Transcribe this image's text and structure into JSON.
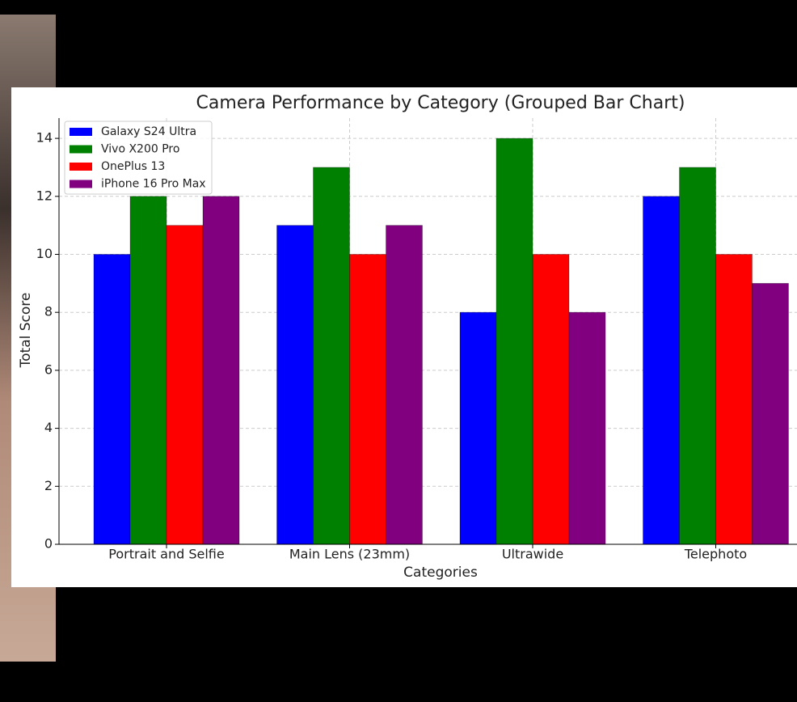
{
  "chart_data": {
    "type": "bar",
    "title": "Camera Performance by Category (Grouped Bar Chart)",
    "x_label": "Categories",
    "y_label": "Total Score",
    "categories": [
      "Portrait and Selfie",
      "Main Lens (23mm)",
      "Ultrawide",
      "Telephoto"
    ],
    "series": [
      {
        "name": "Galaxy S24 Ultra",
        "color": "#0000ff",
        "values": [
          10,
          11,
          8,
          12
        ]
      },
      {
        "name": "Vivo X200 Pro",
        "color": "#008000",
        "values": [
          12,
          13,
          14,
          13
        ]
      },
      {
        "name": "OnePlus 13",
        "color": "#ff0000",
        "values": [
          11,
          10,
          10,
          10
        ]
      },
      {
        "name": "iPhone 16 Pro Max",
        "color": "#800080",
        "values": [
          12,
          11,
          8,
          9
        ]
      }
    ],
    "ylim": [
      0,
      14.7
    ],
    "yticks": [
      0,
      2,
      4,
      6,
      8,
      10,
      12,
      14
    ],
    "grid": true,
    "legend": "upper-left"
  }
}
